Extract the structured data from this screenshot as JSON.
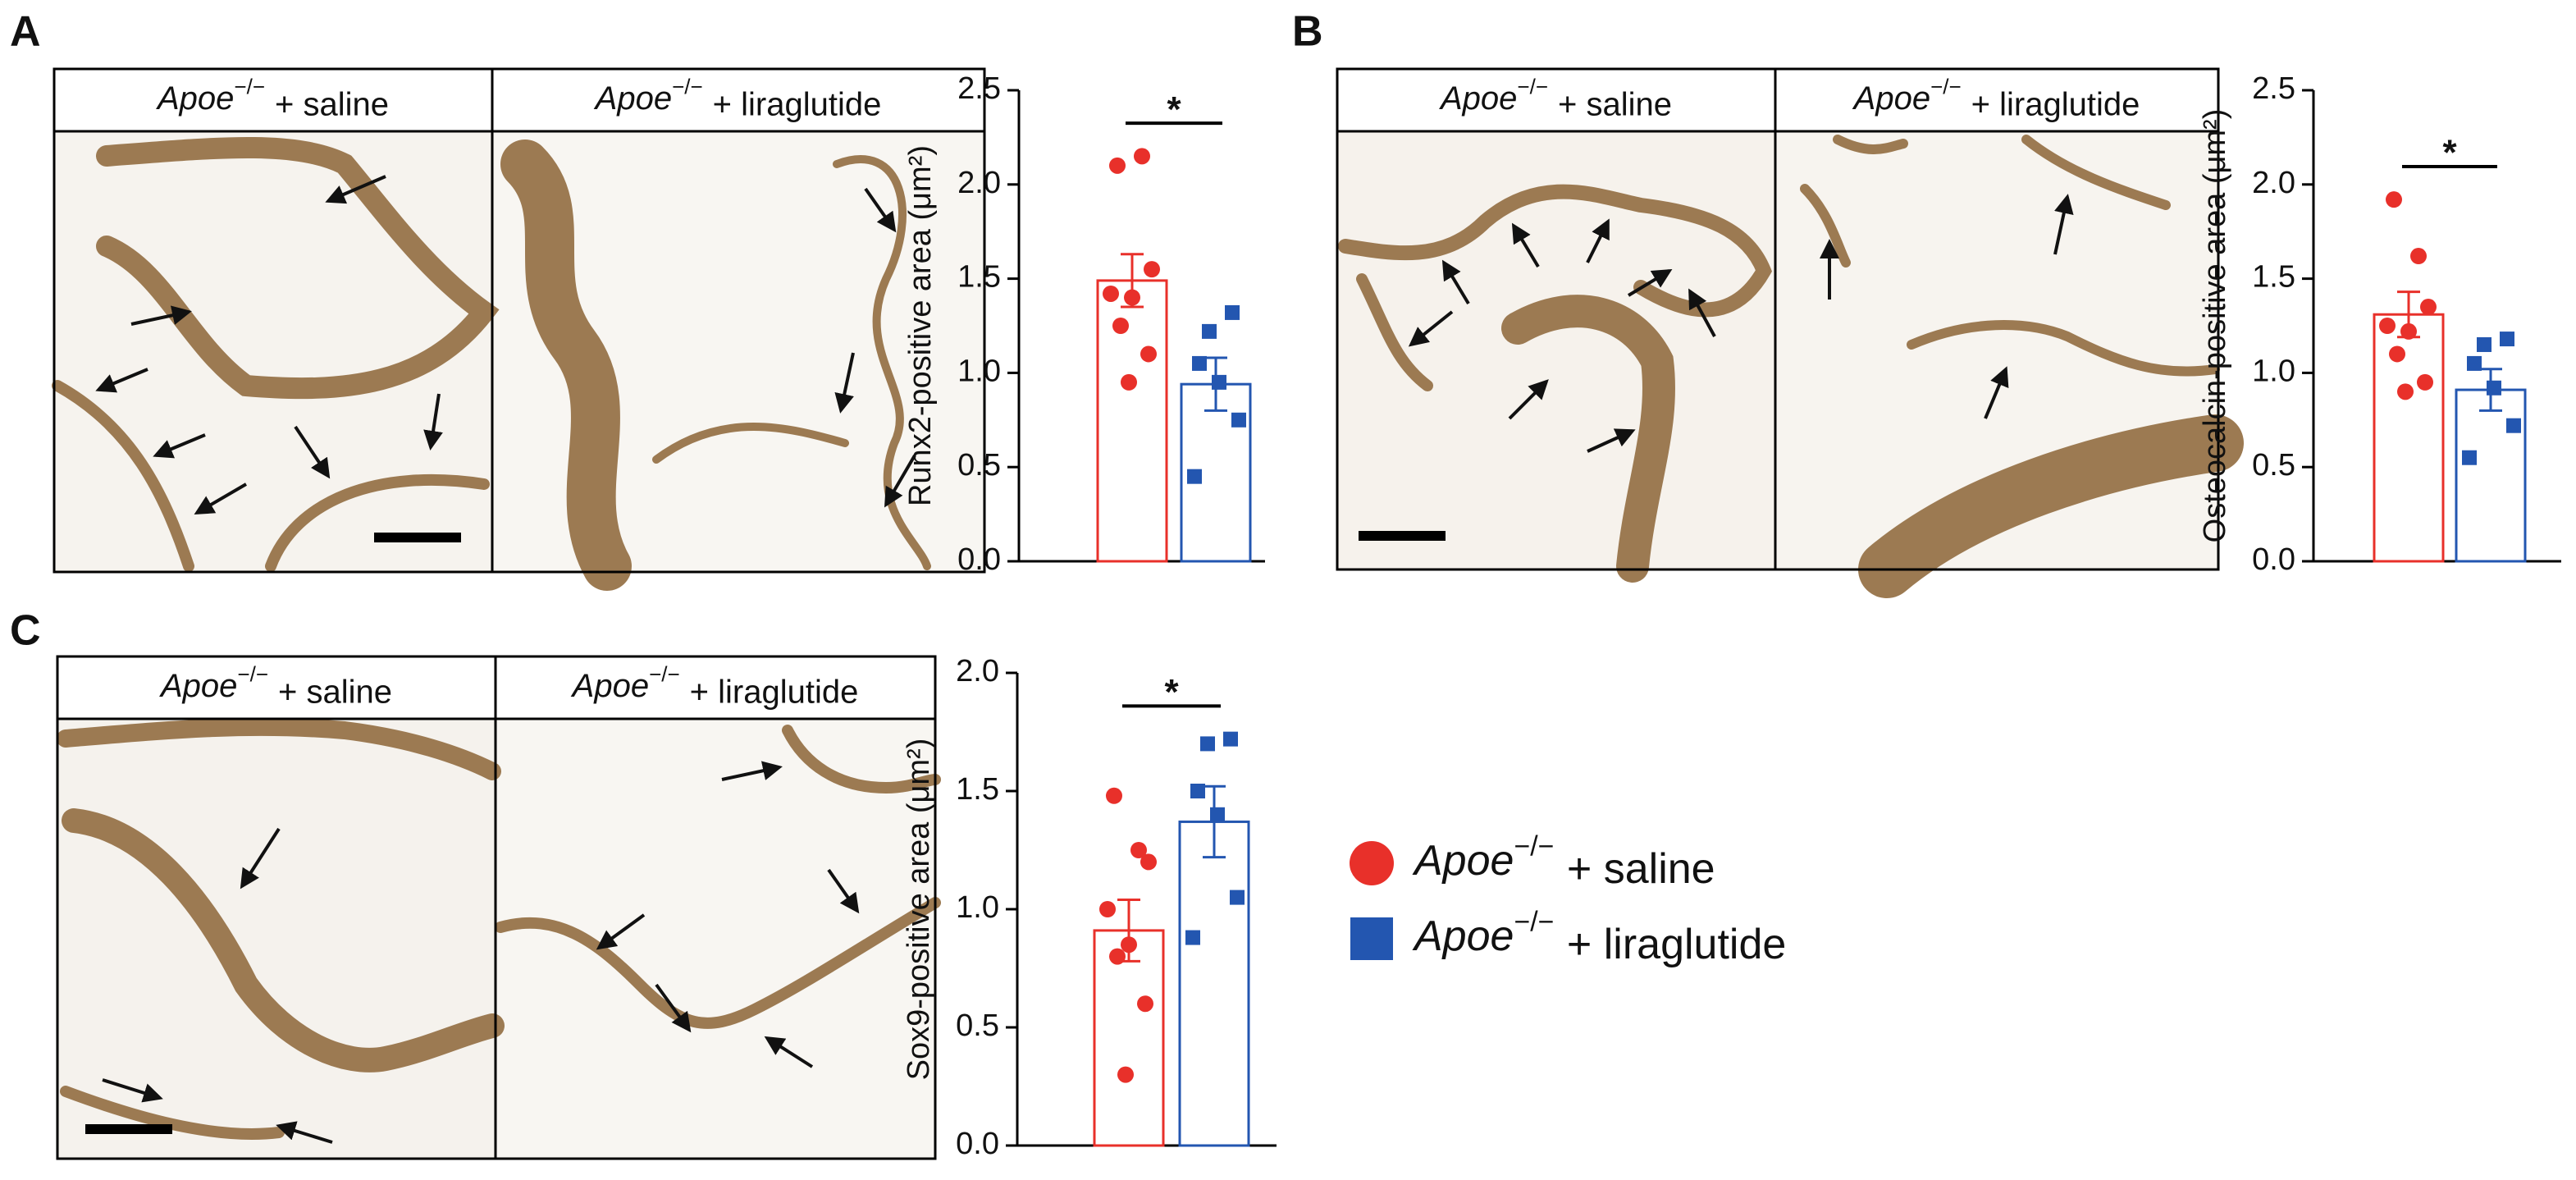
{
  "panel_labels": [
    "A",
    "B",
    "C"
  ],
  "groups": [
    {
      "genotype": "Apoe",
      "genotype_sup": "−/−",
      "treatment": "+ saline",
      "color": "#e8302a",
      "marker": "circle"
    },
    {
      "genotype": "Apoe",
      "genotype_sup": "−/−",
      "treatment": "+ liraglutide",
      "color": "#2356b0",
      "marker": "square"
    }
  ],
  "chart_data": [
    {
      "type": "bar",
      "y_label": "Runx2-positive area (μm²)",
      "significance": "*",
      "ylim": [
        0,
        2.5
      ],
      "yticks": [
        {
          "value": 0,
          "label": "0.0"
        },
        {
          "value": 0.5,
          "label": "0.5"
        },
        {
          "value": 1,
          "label": "1.0"
        },
        {
          "value": 1.5,
          "label": "1.5"
        },
        {
          "value": 2,
          "label": "2.0"
        },
        {
          "value": 2.5,
          "label": "2.5"
        }
      ],
      "series": [
        {
          "color": "#e8302a",
          "mean": 1.49,
          "sem": 0.14,
          "points": [
            2.1,
            2.15,
            1.55,
            1.42,
            1.4,
            1.25,
            1.1,
            0.95
          ]
        },
        {
          "color": "#2356b0",
          "mean": 0.94,
          "sem": 0.14,
          "points": [
            1.32,
            1.22,
            1.05,
            0.95,
            0.75,
            0.45
          ]
        }
      ]
    },
    {
      "type": "bar",
      "y_label": "Osteocalcin-positive area (μm²)",
      "significance": "*",
      "ylim": [
        0,
        2.5
      ],
      "yticks": [
        {
          "value": 0,
          "label": "0.0"
        },
        {
          "value": 0.5,
          "label": "0.5"
        },
        {
          "value": 1,
          "label": "1.0"
        },
        {
          "value": 1.5,
          "label": "1.5"
        },
        {
          "value": 2,
          "label": "2.0"
        },
        {
          "value": 2.5,
          "label": "2.5"
        }
      ],
      "series": [
        {
          "color": "#e8302a",
          "mean": 1.31,
          "sem": 0.12,
          "points": [
            1.92,
            1.62,
            1.35,
            1.25,
            1.22,
            1.1,
            0.95,
            0.9
          ]
        },
        {
          "color": "#2356b0",
          "mean": 0.91,
          "sem": 0.11,
          "points": [
            1.18,
            1.15,
            1.05,
            0.92,
            0.72,
            0.55
          ]
        }
      ]
    },
    {
      "type": "bar",
      "y_label": "Sox9-positive area (μm²)",
      "significance": "*",
      "ylim": [
        0,
        2.0
      ],
      "yticks": [
        {
          "value": 0,
          "label": "0.0"
        },
        {
          "value": 0.5,
          "label": "0.5"
        },
        {
          "value": 1,
          "label": "1.0"
        },
        {
          "value": 1.5,
          "label": "1.5"
        },
        {
          "value": 2,
          "label": "2.0"
        }
      ],
      "series": [
        {
          "color": "#e8302a",
          "mean": 0.91,
          "sem": 0.13,
          "points": [
            1.48,
            1.25,
            1.2,
            1.0,
            0.85,
            0.8,
            0.6,
            0.3
          ]
        },
        {
          "color": "#2356b0",
          "mean": 1.37,
          "sem": 0.15,
          "points": [
            1.72,
            1.7,
            1.5,
            1.4,
            1.05,
            0.88
          ]
        }
      ]
    }
  ]
}
